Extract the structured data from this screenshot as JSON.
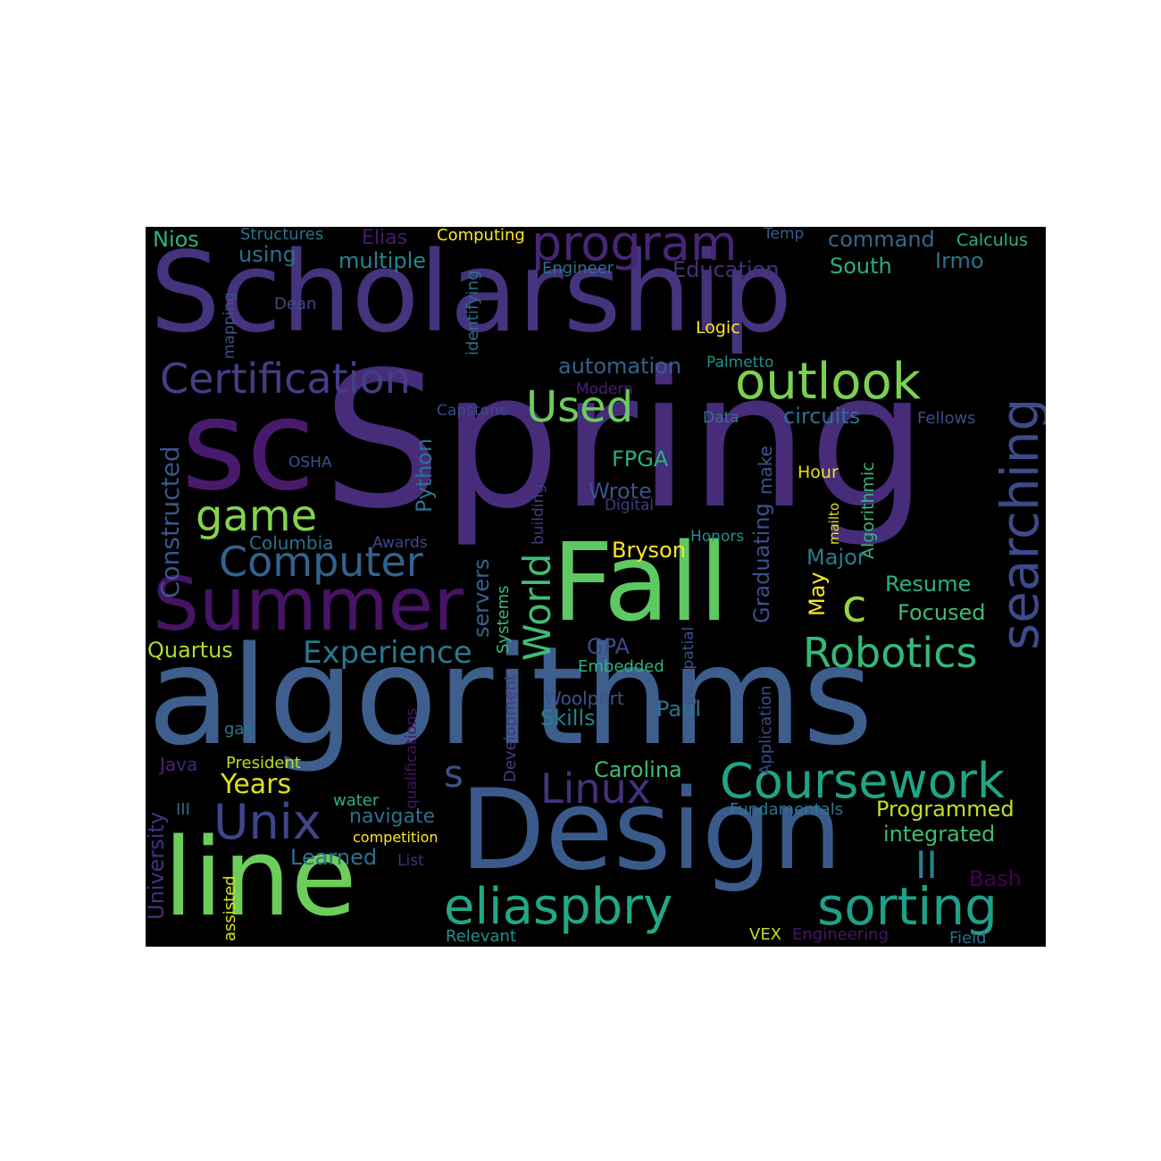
{
  "palette": {
    "background": "#000000",
    "page": "#ffffff",
    "indigo": "#47327e",
    "violet": "#481e6e",
    "steel": "#3b5e8c",
    "teal": "#2a8a8a",
    "green": "#35b779",
    "lime": "#8fd744",
    "yellow": "#fde725"
  },
  "words": [
    {
      "text": "Scholarship",
      "color": "#46337e"
    },
    {
      "text": "Spring",
      "color": "#472c7a"
    },
    {
      "text": "sc",
      "color": "#481a6c"
    },
    {
      "text": "algorithms",
      "color": "#3e5f8d"
    },
    {
      "text": "Design",
      "color": "#3b5a8c"
    },
    {
      "text": "Fall",
      "color": "#5ec962"
    },
    {
      "text": "line",
      "color": "#6ccd5a"
    },
    {
      "text": "Summer",
      "color": "#471365"
    },
    {
      "text": "program",
      "color": "#482576"
    },
    {
      "text": "Certification",
      "color": "#433e85"
    },
    {
      "text": "outlook",
      "color": "#7ad151"
    },
    {
      "text": "Coursework",
      "color": "#20a486"
    },
    {
      "text": "sorting",
      "color": "#1fa088"
    },
    {
      "text": "eliaspbry",
      "color": "#22a785"
    },
    {
      "text": "searching",
      "color": "#3e4a89"
    },
    {
      "text": "Computer",
      "color": "#33628d"
    },
    {
      "text": "Robotics",
      "color": "#37b878"
    },
    {
      "text": "Linux",
      "color": "#46307e"
    },
    {
      "text": "Unix",
      "color": "#40458a"
    },
    {
      "text": "World",
      "color": "#3fbc73"
    },
    {
      "text": "game",
      "color": "#84d44b"
    },
    {
      "text": "Used",
      "color": "#6ccd5a"
    },
    {
      "text": "c",
      "color": "#95d840"
    },
    {
      "text": "II",
      "color": "#26828e"
    },
    {
      "text": "s",
      "color": "#3b528b"
    },
    {
      "text": "Experience",
      "color": "#2a788e"
    },
    {
      "text": "Constructed",
      "color": "#39568c"
    },
    {
      "text": "Years",
      "color": "#dde318"
    },
    {
      "text": "Nios",
      "color": "#2db27d"
    },
    {
      "text": "Structures",
      "color": "#2c728e"
    },
    {
      "text": "Elias",
      "color": "#481b6d"
    },
    {
      "text": "Computing",
      "color": "#fde725"
    },
    {
      "text": "Temp",
      "color": "#355f8d"
    },
    {
      "text": "command",
      "color": "#31688e"
    },
    {
      "text": "Calculus",
      "color": "#2ab07f"
    },
    {
      "text": "using",
      "color": "#2e6e8e"
    },
    {
      "text": "multiple",
      "color": "#25848e"
    },
    {
      "text": "Engineer",
      "color": "#2e6f8e"
    },
    {
      "text": "Education",
      "color": "#46307e"
    },
    {
      "text": "South",
      "color": "#29af7f"
    },
    {
      "text": "Irmo",
      "color": "#2c738e"
    },
    {
      "text": "identifying",
      "color": "#2e6e8e"
    },
    {
      "text": "mapping",
      "color": "#3b528b"
    },
    {
      "text": "Dean",
      "color": "#3e4989"
    },
    {
      "text": "Logic",
      "color": "#fde725"
    },
    {
      "text": "automation",
      "color": "#34618d"
    },
    {
      "text": "Palmetto",
      "color": "#21908d"
    },
    {
      "text": "Modern",
      "color": "#482173"
    },
    {
      "text": "Capstone",
      "color": "#3e4989"
    },
    {
      "text": "circuits",
      "color": "#2d708e"
    },
    {
      "text": "Data",
      "color": "#2a788e"
    },
    {
      "text": "Fellows",
      "color": "#3e4c8a"
    },
    {
      "text": "OSHA",
      "color": "#3b528b"
    },
    {
      "text": "Python",
      "color": "#2c728e"
    },
    {
      "text": "FPGA",
      "color": "#2ab07f"
    },
    {
      "text": "Wrote",
      "color": "#3b528b"
    },
    {
      "text": "make",
      "color": "#38598c"
    },
    {
      "text": "Hour",
      "color": "#e5e419"
    },
    {
      "text": "building",
      "color": "#443983"
    },
    {
      "text": "Digital",
      "color": "#443a83"
    },
    {
      "text": "Algorithmic",
      "color": "#35b779"
    },
    {
      "text": "mailto",
      "color": "#dde318"
    },
    {
      "text": "Columbia",
      "color": "#2e6f8e"
    },
    {
      "text": "Awards",
      "color": "#3e4989"
    },
    {
      "text": "Bryson",
      "color": "#fde725"
    },
    {
      "text": "Honors",
      "color": "#20928c"
    },
    {
      "text": "Major",
      "color": "#287c8e"
    },
    {
      "text": "Graduating",
      "color": "#3b528b"
    },
    {
      "text": "May",
      "color": "#fde725"
    },
    {
      "text": "servers",
      "color": "#33628d"
    },
    {
      "text": "Systems",
      "color": "#38b977"
    },
    {
      "text": "Resume",
      "color": "#2ab07f"
    },
    {
      "text": "Focused",
      "color": "#3fbc73"
    },
    {
      "text": "GPA",
      "color": "#3e4989"
    },
    {
      "text": "Embedded",
      "color": "#2db27d"
    },
    {
      "text": "geospatial",
      "color": "#3b528b"
    },
    {
      "text": "Application",
      "color": "#3e4989"
    },
    {
      "text": "Quartus",
      "color": "#addc30"
    },
    {
      "text": "Development",
      "color": "#443a83"
    },
    {
      "text": "Woolpert",
      "color": "#3b528b"
    },
    {
      "text": "Skills",
      "color": "#26828e"
    },
    {
      "text": "Paul",
      "color": "#2c728e"
    },
    {
      "text": "qualifications",
      "color": "#471365"
    },
    {
      "text": "gas",
      "color": "#2a788e"
    },
    {
      "text": "Java",
      "color": "#482575"
    },
    {
      "text": "President",
      "color": "#b5de2b"
    },
    {
      "text": "Carolina",
      "color": "#3fbc73"
    },
    {
      "text": "University",
      "color": "#46307e"
    },
    {
      "text": "III",
      "color": "#31688e"
    },
    {
      "text": "water",
      "color": "#2ab07f"
    },
    {
      "text": "navigate",
      "color": "#2d708e"
    },
    {
      "text": "Fundamentals",
      "color": "#2a788e"
    },
    {
      "text": "Programmed",
      "color": "#c2df23"
    },
    {
      "text": "integrated",
      "color": "#3fbc73"
    },
    {
      "text": "competition",
      "color": "#fde725"
    },
    {
      "text": "Learned",
      "color": "#2c728e"
    },
    {
      "text": "List",
      "color": "#46307e"
    },
    {
      "text": "assisted",
      "color": "#d8e219"
    },
    {
      "text": "Bash",
      "color": "#440154"
    },
    {
      "text": "Relevant",
      "color": "#21918c"
    },
    {
      "text": "VEX",
      "color": "#bddf26"
    },
    {
      "text": "Engineering",
      "color": "#481668"
    },
    {
      "text": "Field",
      "color": "#2e6e8e"
    }
  ]
}
